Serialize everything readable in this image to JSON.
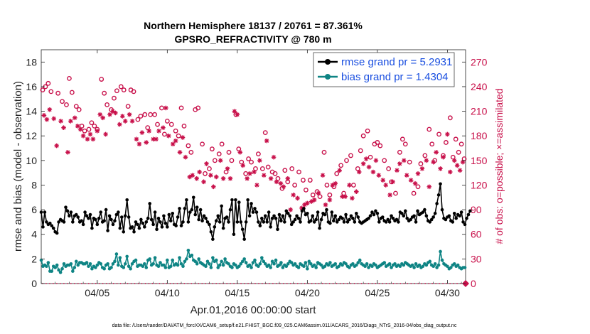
{
  "chart_data": {
    "type": "line",
    "title": "Northern Hemisphere 18137 / 20761 = 87.361%",
    "subtitle": "GPSRO_REFRACTIVITY @ 780 m",
    "ylabel": "rmse and bias (model - observation)",
    "ylabel_right": "# of obs: o=possible; ×=assimilated",
    "xlabel": "Apr.01,2016 00:00:00 start",
    "footer": "data file: /Users/raeder/DAI/ATM_forcXX/CAM6_setup/f.e21.FHIST_BGC.f09_025.CAM6assim.011/ACARS_2016/Diags_NTrS_2016-04/obs_diag_output.nc",
    "xlim": [
      1,
      31.3
    ],
    "ylim": [
      0,
      19
    ],
    "ylim_right": [
      0,
      285
    ],
    "x_ticks": [
      5,
      10,
      15,
      20,
      25,
      30
    ],
    "x_tick_labels": [
      "04/05",
      "04/10",
      "04/15",
      "04/20",
      "04/25",
      "04/30"
    ],
    "y_ticks": [
      0,
      2,
      4,
      6,
      8,
      10,
      12,
      14,
      16,
      18
    ],
    "y_ticks_right": [
      0,
      30,
      60,
      90,
      120,
      150,
      180,
      210,
      240,
      270
    ],
    "legend_position": "top-right",
    "colors": {
      "rmse": "#000000",
      "bias": "#0e8484",
      "obs": "#c8104a",
      "legend_text": "#1a4fe0"
    },
    "series": [
      {
        "name": "rmse grand pr = 5.2931",
        "color": "#000000",
        "values": [
          5.8,
          4.6,
          5.8,
          5.0,
          4.8,
          4.9,
          4.7,
          4.5,
          4.2,
          4.1,
          5.0,
          5.2,
          5.1,
          5.0,
          6.2,
          5.9,
          5.5,
          5.8,
          5.0,
          5.5,
          5.6,
          5.4,
          5.0,
          5.1,
          4.8,
          5.8,
          5.5,
          5.3,
          5.6,
          4.5,
          5.3,
          5.2,
          4.8,
          5.3,
          5.8,
          5.0,
          5.1,
          6.0,
          4.3,
          5.5,
          5.2,
          4.8,
          5.1,
          5.6,
          5.8,
          4.5,
          5.4,
          4.2,
          5.5,
          6.8,
          5.4,
          4.5,
          4.6,
          4.2,
          5.0,
          4.8,
          4.5,
          5.2,
          4.9,
          4.6,
          5.0,
          5.3,
          6.5,
          5.2,
          4.8,
          5.8,
          4.4,
          5.3,
          5.0,
          4.6,
          5.5,
          4.9,
          4.6,
          5.6,
          5.1,
          5.7,
          4.8,
          4.7,
          5.4,
          6.1,
          4.7,
          5.0,
          6.1,
          6.8,
          5.0,
          5.8,
          6.0,
          7.0,
          5.6,
          6.2,
          5.2,
          6.0,
          5.1,
          5.5,
          5.3,
          5.0,
          4.8,
          4.2,
          3.6,
          4.6,
          5.1,
          5.5,
          5.0,
          6.3,
          4.5,
          5.3,
          5.4,
          5.0,
          6.0,
          6.8,
          4.0,
          6.8,
          5.0,
          6.6,
          5.0,
          4.4,
          3.6,
          5.0,
          6.8,
          5.5,
          6.5,
          5.8,
          6.1,
          5.8,
          5.0,
          4.7,
          5.3,
          5.0,
          5.5,
          5.0,
          5.8,
          4.6,
          5.3,
          5.5,
          5.3,
          4.4,
          5.6,
          5.1,
          5.5,
          5.0,
          5.9,
          5.7,
          5.5,
          4.8,
          5.0,
          5.2,
          5.5,
          5.3,
          5.0,
          5.9,
          6.1,
          5.6,
          5.7,
          5.0,
          5.1,
          5.5,
          5.0,
          5.2,
          5.8,
          4.5,
          5.2,
          5.7,
          5.6,
          6.0,
          5.0,
          4.9,
          5.8,
          5.1,
          5.5,
          5.0,
          5.2,
          5.4,
          5.3,
          5.0,
          5.6,
          5.0,
          5.2,
          5.5,
          5.3,
          5.0,
          5.7,
          5.4,
          5.0,
          4.9,
          5.0,
          5.1,
          5.2,
          5.3,
          5.5,
          5.8,
          5.6,
          5.9,
          5.7,
          5.0,
          5.3,
          5.4,
          5.1,
          5.0,
          5.2,
          5.0,
          5.5,
          5.3,
          5.1,
          5.2,
          5.0,
          5.8,
          5.7,
          5.5,
          5.9,
          5.3,
          5.1,
          5.2,
          5.4,
          5.5,
          5.0,
          5.9,
          5.6,
          5.7,
          5.8,
          6.0,
          5.5,
          5.1,
          5.0,
          5.2,
          5.4,
          5.7,
          6.5,
          7.2,
          8.1,
          6.0,
          5.3,
          5.2,
          5.4,
          5.5,
          5.1,
          5.0,
          5.7,
          5.3,
          5.6,
          5.5,
          5.8,
          5.0,
          4.8,
          5.3,
          5.6,
          5.9
        ],
        "x_start": 1.0,
        "x_step": 0.125
      },
      {
        "name": "bias grand pr = 1.4304",
        "color": "#0e8484",
        "values": [
          1.9,
          1.4,
          1.5,
          1.4,
          1.7,
          1.0,
          1.0,
          1.4,
          1.3,
          1.5,
          1.1,
          0.9,
          1.2,
          1.6,
          1.4,
          1.5,
          1.5,
          1.6,
          1.0,
          1.3,
          1.8,
          1.5,
          1.7,
          1.7,
          1.6,
          1.6,
          1.7,
          1.4,
          1.6,
          1.2,
          1.4,
          1.3,
          1.5,
          1.7,
          1.6,
          1.3,
          1.2,
          1.5,
          1.6,
          1.2,
          1.3,
          1.6,
          1.8,
          2.4,
          1.5,
          2.1,
          1.4,
          1.3,
          1.6,
          2.2,
          1.4,
          1.2,
          1.6,
          1.8,
          1.9,
          1.4,
          1.5,
          1.5,
          1.4,
          1.6,
          1.3,
          1.9,
          2.0,
          1.5,
          1.6,
          2.1,
          1.5,
          1.4,
          1.7,
          1.5,
          1.5,
          1.3,
          1.9,
          1.3,
          1.4,
          1.9,
          1.5,
          1.6,
          1.5,
          2.1,
          1.6,
          1.4,
          1.8,
          2.0,
          2.7,
          2.2,
          2.3,
          1.9,
          1.8,
          1.6,
          2.0,
          1.7,
          1.6,
          1.5,
          1.4,
          1.8,
          1.6,
          1.3,
          2.1,
          1.8,
          1.9,
          1.3,
          1.5,
          1.8,
          1.5,
          2.0,
          1.7,
          1.6,
          1.4,
          1.3,
          1.6,
          1.5,
          1.3,
          1.4,
          1.6,
          1.8,
          2.0,
          1.7,
          1.4,
          1.5,
          1.3,
          1.7,
          1.9,
          1.5,
          1.4,
          1.6,
          2.1,
          1.8,
          1.6,
          1.4,
          1.5,
          1.3,
          1.8,
          1.6,
          1.9,
          1.4,
          1.5,
          1.7,
          1.3,
          1.5,
          1.4,
          1.6,
          1.8,
          1.7,
          1.5,
          1.6,
          1.4,
          1.3,
          1.6,
          1.5,
          1.4,
          1.7,
          1.2,
          1.8,
          1.6,
          1.4,
          1.5,
          1.3,
          1.7,
          1.6,
          1.5,
          1.3,
          1.4,
          1.6,
          1.5,
          1.7,
          1.4,
          1.5,
          1.6,
          1.3,
          1.4,
          1.6,
          1.5,
          1.7,
          1.6,
          1.4,
          1.3,
          1.5,
          1.6,
          1.4,
          1.5,
          1.7,
          1.9,
          1.6,
          1.5,
          1.4,
          1.6,
          1.3,
          1.5,
          1.4,
          1.6,
          1.5,
          1.3,
          1.4,
          1.5,
          1.6,
          1.7,
          1.4,
          1.5,
          1.6,
          1.3,
          1.5,
          1.6,
          1.4,
          1.5,
          1.4,
          1.6,
          1.5,
          1.7,
          1.6,
          1.5,
          1.4,
          1.5,
          1.3,
          1.6,
          1.4,
          1.5,
          1.3,
          1.4,
          1.6,
          1.5,
          1.7,
          1.8,
          1.5,
          1.4,
          1.6,
          1.3,
          1.5,
          2.6,
          1.9,
          1.6,
          1.5,
          1.4,
          1.2,
          1.3,
          1.5,
          1.6,
          1.4,
          1.5,
          1.3,
          1.2,
          1.3,
          1.3
        ],
        "x_start": 1.0,
        "x_step": 0.125
      }
    ],
    "obs_possible": [
      [
        1.1,
        236
      ],
      [
        1.3,
        240
      ],
      [
        1.5,
        244
      ],
      [
        1.7,
        234
      ],
      [
        2.2,
        232
      ],
      [
        2.5,
        222
      ],
      [
        2.8,
        218
      ],
      [
        3.0,
        250
      ],
      [
        3.2,
        233
      ],
      [
        3.5,
        216
      ],
      [
        3.7,
        212
      ],
      [
        3.9,
        192
      ],
      [
        4.1,
        186
      ],
      [
        4.4,
        188
      ],
      [
        4.6,
        196
      ],
      [
        4.8,
        192
      ],
      [
        5.0,
        188
      ],
      [
        5.3,
        249
      ],
      [
        5.5,
        232
      ],
      [
        5.7,
        218
      ],
      [
        6.0,
        212
      ],
      [
        6.2,
        226
      ],
      [
        6.4,
        235
      ],
      [
        6.7,
        240
      ],
      [
        6.9,
        236
      ],
      [
        7.2,
        216
      ],
      [
        7.4,
        236
      ],
      [
        7.6,
        234
      ],
      [
        7.9,
        200
      ],
      [
        8.1,
        204
      ],
      [
        8.4,
        206
      ],
      [
        8.6,
        190
      ],
      [
        8.8,
        206
      ],
      [
        9.1,
        206
      ],
      [
        9.3,
        194
      ],
      [
        9.6,
        214
      ],
      [
        9.8,
        182
      ],
      [
        10.0,
        198
      ],
      [
        10.3,
        194
      ],
      [
        10.6,
        186
      ],
      [
        10.8,
        180
      ],
      [
        11.0,
        214
      ],
      [
        11.2,
        192
      ],
      [
        11.5,
        168
      ],
      [
        11.7,
        160
      ],
      [
        12.0,
        212
      ],
      [
        12.2,
        214
      ],
      [
        12.5,
        170
      ],
      [
        12.7,
        134
      ],
      [
        13.0,
        140
      ],
      [
        13.2,
        164
      ],
      [
        13.4,
        150
      ],
      [
        13.7,
        158
      ],
      [
        13.9,
        170
      ],
      [
        14.2,
        136
      ],
      [
        14.4,
        160
      ],
      [
        14.6,
        150
      ],
      [
        14.9,
        206
      ],
      [
        15.1,
        164
      ],
      [
        15.3,
        148
      ],
      [
        15.6,
        134
      ],
      [
        15.8,
        152
      ],
      [
        16.0,
        148
      ],
      [
        16.3,
        140
      ],
      [
        16.5,
        158
      ],
      [
        16.8,
        140
      ],
      [
        17.0,
        184
      ],
      [
        17.2,
        142
      ],
      [
        17.5,
        136
      ],
      [
        17.7,
        134
      ],
      [
        17.9,
        128
      ],
      [
        18.2,
        116
      ],
      [
        18.4,
        138
      ],
      [
        18.6,
        124
      ],
      [
        18.9,
        140
      ],
      [
        19.1,
        120
      ],
      [
        19.4,
        136
      ],
      [
        19.7,
        126
      ],
      [
        19.9,
        114
      ],
      [
        20.2,
        126
      ],
      [
        20.4,
        108
      ],
      [
        20.7,
        112
      ],
      [
        20.9,
        106
      ],
      [
        21.2,
        160
      ],
      [
        21.4,
        120
      ],
      [
        21.6,
        108
      ],
      [
        21.9,
        118
      ],
      [
        22.1,
        134
      ],
      [
        22.4,
        144
      ],
      [
        22.6,
        110
      ],
      [
        22.8,
        150
      ],
      [
        23.1,
        156
      ],
      [
        23.3,
        120
      ],
      [
        23.6,
        140
      ],
      [
        23.8,
        162
      ],
      [
        24.0,
        180
      ],
      [
        24.3,
        186
      ],
      [
        24.5,
        154
      ],
      [
        24.8,
        170
      ],
      [
        25.0,
        172
      ],
      [
        25.2,
        168
      ],
      [
        25.5,
        150
      ],
      [
        25.8,
        140
      ],
      [
        26.0,
        124
      ],
      [
        26.3,
        110
      ],
      [
        26.6,
        160
      ],
      [
        26.8,
        176
      ],
      [
        27.0,
        170
      ],
      [
        27.3,
        148
      ],
      [
        27.6,
        110
      ],
      [
        27.9,
        118
      ],
      [
        28.1,
        146
      ],
      [
        28.4,
        156
      ],
      [
        28.7,
        188
      ],
      [
        28.9,
        170
      ],
      [
        29.1,
        150
      ],
      [
        29.4,
        182
      ],
      [
        29.7,
        156
      ],
      [
        29.9,
        172
      ],
      [
        30.2,
        202
      ],
      [
        30.4,
        154
      ],
      [
        30.6,
        176
      ],
      [
        30.8,
        160
      ],
      [
        31.0,
        170
      ],
      [
        31.2,
        152
      ]
    ],
    "obs_assimilated": [
      [
        1.2,
        205
      ],
      [
        1.4,
        200
      ],
      [
        1.6,
        212
      ],
      [
        1.9,
        201
      ],
      [
        2.1,
        168
      ],
      [
        2.4,
        198
      ],
      [
        2.6,
        190
      ],
      [
        2.9,
        160
      ],
      [
        3.1,
        198
      ],
      [
        3.4,
        202
      ],
      [
        3.6,
        192
      ],
      [
        3.8,
        188
      ],
      [
        4.0,
        180
      ],
      [
        4.3,
        176
      ],
      [
        4.5,
        182
      ],
      [
        4.7,
        176
      ],
      [
        5.0,
        186
      ],
      [
        5.2,
        206
      ],
      [
        5.4,
        202
      ],
      [
        5.6,
        182
      ],
      [
        5.9,
        206
      ],
      [
        6.1,
        210
      ],
      [
        6.3,
        208
      ],
      [
        6.6,
        194
      ],
      [
        6.8,
        204
      ],
      [
        7.0,
        198
      ],
      [
        7.3,
        206
      ],
      [
        7.5,
        198
      ],
      [
        7.8,
        176
      ],
      [
        8.0,
        170
      ],
      [
        8.2,
        184
      ],
      [
        8.5,
        172
      ],
      [
        8.7,
        186
      ],
      [
        9.0,
        176
      ],
      [
        9.2,
        176
      ],
      [
        9.4,
        186
      ],
      [
        9.7,
        190
      ],
      [
        9.9,
        214
      ],
      [
        10.1,
        180
      ],
      [
        10.4,
        170
      ],
      [
        10.6,
        174
      ],
      [
        10.9,
        160
      ],
      [
        11.1,
        178
      ],
      [
        11.3,
        154
      ],
      [
        11.6,
        130
      ],
      [
        11.8,
        132
      ],
      [
        12.1,
        128
      ],
      [
        12.3,
        136
      ],
      [
        12.6,
        124
      ],
      [
        12.8,
        146
      ],
      [
        13.1,
        132
      ],
      [
        13.3,
        118
      ],
      [
        13.5,
        130
      ],
      [
        13.8,
        150
      ],
      [
        14.0,
        128
      ],
      [
        14.3,
        140
      ],
      [
        14.5,
        128
      ],
      [
        14.8,
        210
      ],
      [
        15.0,
        206
      ],
      [
        15.2,
        160
      ],
      [
        15.4,
        144
      ],
      [
        15.7,
        128
      ],
      [
        15.9,
        134
      ],
      [
        16.2,
        136
      ],
      [
        16.4,
        120
      ],
      [
        16.6,
        150
      ],
      [
        16.9,
        132
      ],
      [
        17.1,
        174
      ],
      [
        17.4,
        128
      ],
      [
        17.6,
        154
      ],
      [
        17.8,
        124
      ],
      [
        18.1,
        122
      ],
      [
        18.3,
        118
      ],
      [
        18.6,
        128
      ],
      [
        18.8,
        90
      ],
      [
        19.0,
        108
      ],
      [
        19.3,
        104
      ],
      [
        19.6,
        92
      ],
      [
        19.8,
        96
      ],
      [
        20.0,
        98
      ],
      [
        20.3,
        100
      ],
      [
        20.5,
        102
      ],
      [
        20.8,
        110
      ],
      [
        21.1,
        132
      ],
      [
        21.3,
        96
      ],
      [
        21.6,
        102
      ],
      [
        21.8,
        120
      ],
      [
        22.0,
        122
      ],
      [
        22.3,
        138
      ],
      [
        22.5,
        106
      ],
      [
        22.7,
        106
      ],
      [
        23.0,
        120
      ],
      [
        23.2,
        104
      ],
      [
        23.5,
        112
      ],
      [
        23.7,
        136
      ],
      [
        24.0,
        146
      ],
      [
        24.2,
        152
      ],
      [
        24.4,
        142
      ],
      [
        24.7,
        136
      ],
      [
        24.9,
        150
      ],
      [
        25.1,
        132
      ],
      [
        25.4,
        126
      ],
      [
        25.6,
        120
      ],
      [
        25.9,
        108
      ],
      [
        26.1,
        124
      ],
      [
        26.4,
        138
      ],
      [
        26.6,
        146
      ],
      [
        26.9,
        150
      ],
      [
        27.1,
        132
      ],
      [
        27.4,
        126
      ],
      [
        27.7,
        122
      ],
      [
        27.9,
        134
      ],
      [
        28.2,
        140
      ],
      [
        28.5,
        150
      ],
      [
        28.7,
        118
      ],
      [
        29.0,
        148
      ],
      [
        29.2,
        160
      ],
      [
        29.5,
        140
      ],
      [
        29.7,
        154
      ],
      [
        30.0,
        182
      ],
      [
        30.2,
        136
      ],
      [
        30.5,
        150
      ],
      [
        30.7,
        144
      ],
      [
        30.9,
        138
      ],
      [
        31.1,
        148
      ]
    ]
  }
}
